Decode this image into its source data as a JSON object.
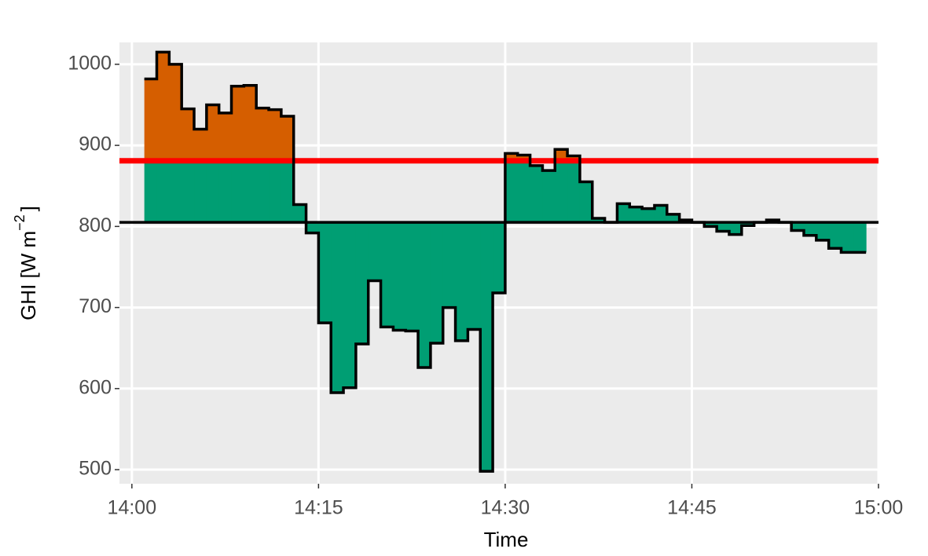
{
  "chart_data": {
    "type": "step-area",
    "xlabel": "Time",
    "ylabel": [
      "GHI [W m",
      "−2",
      "]"
    ],
    "x": [
      "14:01",
      "14:02",
      "14:03",
      "14:04",
      "14:05",
      "14:06",
      "14:07",
      "14:08",
      "14:09",
      "14:10",
      "14:11",
      "14:12",
      "14:13",
      "14:14",
      "14:15",
      "14:16",
      "14:17",
      "14:18",
      "14:19",
      "14:20",
      "14:21",
      "14:22",
      "14:23",
      "14:24",
      "14:25",
      "14:26",
      "14:27",
      "14:28",
      "14:29",
      "14:30",
      "14:31",
      "14:32",
      "14:33",
      "14:34",
      "14:35",
      "14:36",
      "14:37",
      "14:38",
      "14:39",
      "14:40",
      "14:41",
      "14:42",
      "14:43",
      "14:44",
      "14:45",
      "14:46",
      "14:47",
      "14:48",
      "14:49",
      "14:50",
      "14:51",
      "14:52",
      "14:53",
      "14:54",
      "14:55",
      "14:56",
      "14:57",
      "14:58",
      "14:59"
    ],
    "values": [
      982,
      1015,
      1000,
      945,
      920,
      950,
      940,
      973,
      974,
      946,
      944,
      936,
      827,
      792,
      681,
      595,
      601,
      655,
      733,
      676,
      672,
      671,
      626,
      656,
      700,
      659,
      673,
      498,
      718,
      890,
      888,
      875,
      869,
      895,
      887,
      855,
      810,
      805,
      828,
      824,
      822,
      826,
      815,
      808,
      805,
      800,
      794,
      790,
      801,
      805,
      808,
      805,
      795,
      789,
      783,
      773,
      768,
      768,
      768
    ],
    "line_color": "#000000",
    "below_color": "#009E73",
    "above_color": "#D55E00",
    "hlines": [
      {
        "value": 805,
        "color": "#000000"
      },
      {
        "value": 881,
        "color": "#FF0000"
      }
    ],
    "xlim": [
      "13:59",
      "15:00"
    ],
    "xticks": [
      "14:00",
      "14:15",
      "14:30",
      "14:45",
      "15:00"
    ],
    "ylim": [
      482.6,
      1027
    ],
    "yticks": [
      500,
      600,
      700,
      800,
      900,
      1000
    ],
    "grid": true
  }
}
